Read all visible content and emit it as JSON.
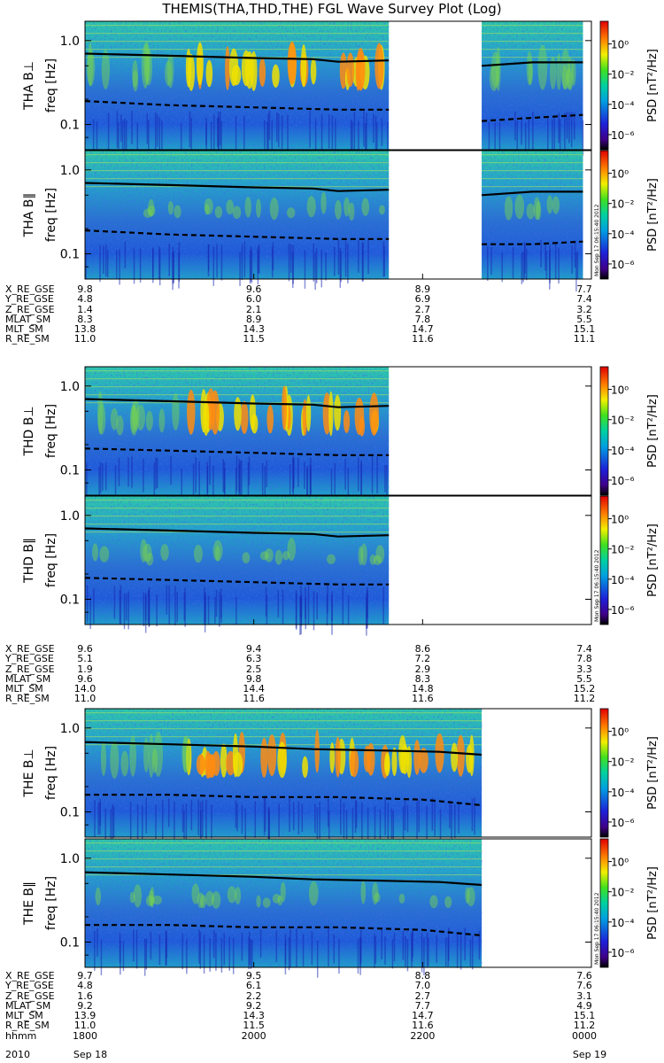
{
  "title": "THEMIS(THA,THD,THE) FGL Wave Survey Plot (Log)",
  "colorbar": {
    "label": "PSD [nT²/Hz]",
    "ticks": [
      "10⁰",
      "10⁻²",
      "10⁻⁴",
      "10⁻⁶"
    ],
    "stamp": "Mon Sep 17 06:15:40 2012"
  },
  "freq_axis": {
    "label": "freq [Hz]",
    "ticks": [
      "1.0",
      "0.1"
    ]
  },
  "colors": {
    "spectrogram_low": "#1e3ad0",
    "spectrogram_mid": "#19b4c0",
    "spectrogram_high": "#e02010",
    "line": "#000000"
  },
  "panels": [
    {
      "probe": "THA",
      "component": "THA B⊥",
      "tag": "tha-bperp"
    },
    {
      "probe": "THA",
      "component": "THA B∥",
      "tag": "tha-bpar"
    },
    {
      "probe": "THD",
      "component": "THD B⊥",
      "tag": "thd-bperp"
    },
    {
      "probe": "THD",
      "component": "THD B∥",
      "tag": "thd-bpar"
    },
    {
      "probe": "THE",
      "component": "THE B⊥",
      "tag": "the-bperp"
    },
    {
      "probe": "THE",
      "component": "THE B∥",
      "tag": "the-bpar"
    }
  ],
  "ephemeris": [
    {
      "probe": "THA",
      "rows": [
        {
          "label": "X_RE_GSE",
          "values": [
            "9.8",
            "9.6",
            "8.9",
            "7.7"
          ]
        },
        {
          "label": "Y_RE_GSE",
          "values": [
            "4.8",
            "6.0",
            "6.9",
            "7.4"
          ]
        },
        {
          "label": "Z_RE_GSE",
          "values": [
            "1.4",
            "2.1",
            "2.7",
            "3.2"
          ]
        },
        {
          "label": "MLAT_SM",
          "values": [
            "8.3",
            "8.9",
            "7.8",
            "5.5"
          ]
        },
        {
          "label": "MLT_SM",
          "values": [
            "13.8",
            "14.3",
            "14.7",
            "15.1"
          ]
        },
        {
          "label": "R_RE_SM",
          "values": [
            "11.0",
            "11.5",
            "11.6",
            "11.1"
          ]
        }
      ]
    },
    {
      "probe": "THD",
      "rows": [
        {
          "label": "X_RE_GSE",
          "values": [
            "9.6",
            "9.4",
            "8.6",
            "7.4"
          ]
        },
        {
          "label": "Y_RE_GSE",
          "values": [
            "5.1",
            "6.3",
            "7.2",
            "7.8"
          ]
        },
        {
          "label": "Z_RE_GSE",
          "values": [
            "1.9",
            "2.5",
            "2.9",
            "3.3"
          ]
        },
        {
          "label": "MLAT_SM",
          "values": [
            "9.6",
            "9.8",
            "8.3",
            "5.5"
          ]
        },
        {
          "label": "MLT_SM",
          "values": [
            "14.0",
            "14.4",
            "14.8",
            "15.2"
          ]
        },
        {
          "label": "R_RE_SM",
          "values": [
            "11.0",
            "11.6",
            "11.6",
            "11.2"
          ]
        }
      ]
    },
    {
      "probe": "THE",
      "rows": [
        {
          "label": "X_RE_GSE",
          "values": [
            "9.7",
            "9.5",
            "8.8",
            "7.6"
          ]
        },
        {
          "label": "Y_RE_GSE",
          "values": [
            "4.8",
            "6.1",
            "7.0",
            "7.6"
          ]
        },
        {
          "label": "Z_RE_GSE",
          "values": [
            "1.6",
            "2.2",
            "2.7",
            "3.1"
          ]
        },
        {
          "label": "MLAT_SM",
          "values": [
            "9.2",
            "9.2",
            "7.7",
            "4.9"
          ]
        },
        {
          "label": "MLT_SM",
          "values": [
            "13.9",
            "14.3",
            "14.7",
            "15.1"
          ]
        },
        {
          "label": "R_RE_SM",
          "values": [
            "11.0",
            "11.5",
            "11.6",
            "11.2"
          ]
        },
        {
          "label": "hhmm",
          "values": [
            "1800",
            "2000",
            "2200",
            "0000"
          ]
        }
      ]
    }
  ],
  "date_row": {
    "year": "2010",
    "start": "Sep 18",
    "end": "Sep 19"
  },
  "chart_data": {
    "type": "heatmap",
    "title": "THEMIS(THA,THD,THE) FGL Wave Survey Plot (Log)",
    "ylabel": "freq [Hz]",
    "yscale": "log",
    "ylim": [
      0.05,
      1.7
    ],
    "colorbar_label": "PSD [nT²/Hz]",
    "colorbar_range_log10": [
      -7,
      1.5
    ],
    "x_ticks": [
      "1800",
      "2000",
      "2200",
      "0000"
    ],
    "x_hours": [
      18,
      20,
      22,
      24
    ],
    "xlim_hours": [
      18.0,
      24.0
    ],
    "panels": [
      {
        "name": "THA B⊥",
        "data_intervals_hours": [
          [
            18.0,
            21.6
          ],
          [
            22.7,
            23.9
          ]
        ],
        "solid_line_hz": [
          [
            18.0,
            0.7
          ],
          [
            19.0,
            0.66
          ],
          [
            20.0,
            0.62
          ],
          [
            20.7,
            0.6
          ],
          [
            21.0,
            0.56
          ],
          [
            21.6,
            0.58
          ],
          [
            22.7,
            0.5
          ],
          [
            23.3,
            0.55
          ],
          [
            23.9,
            0.55
          ]
        ],
        "dashed_line_hz": [
          [
            18.0,
            0.19
          ],
          [
            19.0,
            0.17
          ],
          [
            20.0,
            0.16
          ],
          [
            21.0,
            0.15
          ],
          [
            21.6,
            0.15
          ],
          [
            22.7,
            0.11
          ],
          [
            23.3,
            0.12
          ],
          [
            23.9,
            0.13
          ]
        ]
      },
      {
        "name": "THA B∥",
        "data_intervals_hours": [
          [
            18.0,
            21.6
          ],
          [
            22.7,
            23.9
          ]
        ],
        "solid_line_hz": [
          [
            18.0,
            0.7
          ],
          [
            19.0,
            0.66
          ],
          [
            20.0,
            0.62
          ],
          [
            20.7,
            0.6
          ],
          [
            21.0,
            0.56
          ],
          [
            21.6,
            0.58
          ],
          [
            22.7,
            0.5
          ],
          [
            23.3,
            0.55
          ],
          [
            23.9,
            0.55
          ]
        ],
        "dashed_line_hz": [
          [
            18.0,
            0.19
          ],
          [
            19.0,
            0.17
          ],
          [
            20.0,
            0.16
          ],
          [
            21.0,
            0.15
          ],
          [
            21.6,
            0.15
          ],
          [
            22.7,
            0.13
          ],
          [
            23.3,
            0.13
          ],
          [
            23.9,
            0.14
          ]
        ]
      },
      {
        "name": "THD B⊥",
        "data_intervals_hours": [
          [
            18.0,
            21.6
          ]
        ],
        "solid_line_hz": [
          [
            18.0,
            0.7
          ],
          [
            19.0,
            0.66
          ],
          [
            20.0,
            0.62
          ],
          [
            20.7,
            0.6
          ],
          [
            21.0,
            0.56
          ],
          [
            21.6,
            0.58
          ]
        ],
        "dashed_line_hz": [
          [
            18.0,
            0.18
          ],
          [
            19.0,
            0.17
          ],
          [
            20.0,
            0.16
          ],
          [
            21.0,
            0.15
          ],
          [
            21.6,
            0.15
          ]
        ]
      },
      {
        "name": "THD B∥",
        "data_intervals_hours": [
          [
            18.0,
            21.6
          ]
        ],
        "solid_line_hz": [
          [
            18.0,
            0.7
          ],
          [
            19.0,
            0.66
          ],
          [
            20.0,
            0.62
          ],
          [
            20.7,
            0.6
          ],
          [
            21.0,
            0.56
          ],
          [
            21.6,
            0.58
          ]
        ],
        "dashed_line_hz": [
          [
            18.0,
            0.18
          ],
          [
            19.0,
            0.17
          ],
          [
            20.0,
            0.16
          ],
          [
            21.0,
            0.15
          ],
          [
            21.6,
            0.15
          ]
        ]
      },
      {
        "name": "THE B⊥",
        "data_intervals_hours": [
          [
            18.0,
            22.7
          ]
        ],
        "solid_line_hz": [
          [
            18.0,
            0.68
          ],
          [
            19.0,
            0.64
          ],
          [
            20.0,
            0.6
          ],
          [
            20.7,
            0.56
          ],
          [
            21.5,
            0.54
          ],
          [
            22.2,
            0.52
          ],
          [
            22.7,
            0.48
          ]
        ],
        "dashed_line_hz": [
          [
            18.0,
            0.16
          ],
          [
            19.0,
            0.16
          ],
          [
            20.0,
            0.15
          ],
          [
            21.0,
            0.15
          ],
          [
            22.0,
            0.14
          ],
          [
            22.7,
            0.12
          ]
        ]
      },
      {
        "name": "THE B∥",
        "data_intervals_hours": [
          [
            18.0,
            22.7
          ]
        ],
        "solid_line_hz": [
          [
            18.0,
            0.68
          ],
          [
            19.0,
            0.64
          ],
          [
            20.0,
            0.6
          ],
          [
            20.7,
            0.56
          ],
          [
            21.5,
            0.54
          ],
          [
            22.2,
            0.52
          ],
          [
            22.7,
            0.48
          ]
        ],
        "dashed_line_hz": [
          [
            18.0,
            0.16
          ],
          [
            19.0,
            0.16
          ],
          [
            20.0,
            0.15
          ],
          [
            21.0,
            0.15
          ],
          [
            22.0,
            0.14
          ],
          [
            22.7,
            0.12
          ]
        ]
      }
    ]
  }
}
